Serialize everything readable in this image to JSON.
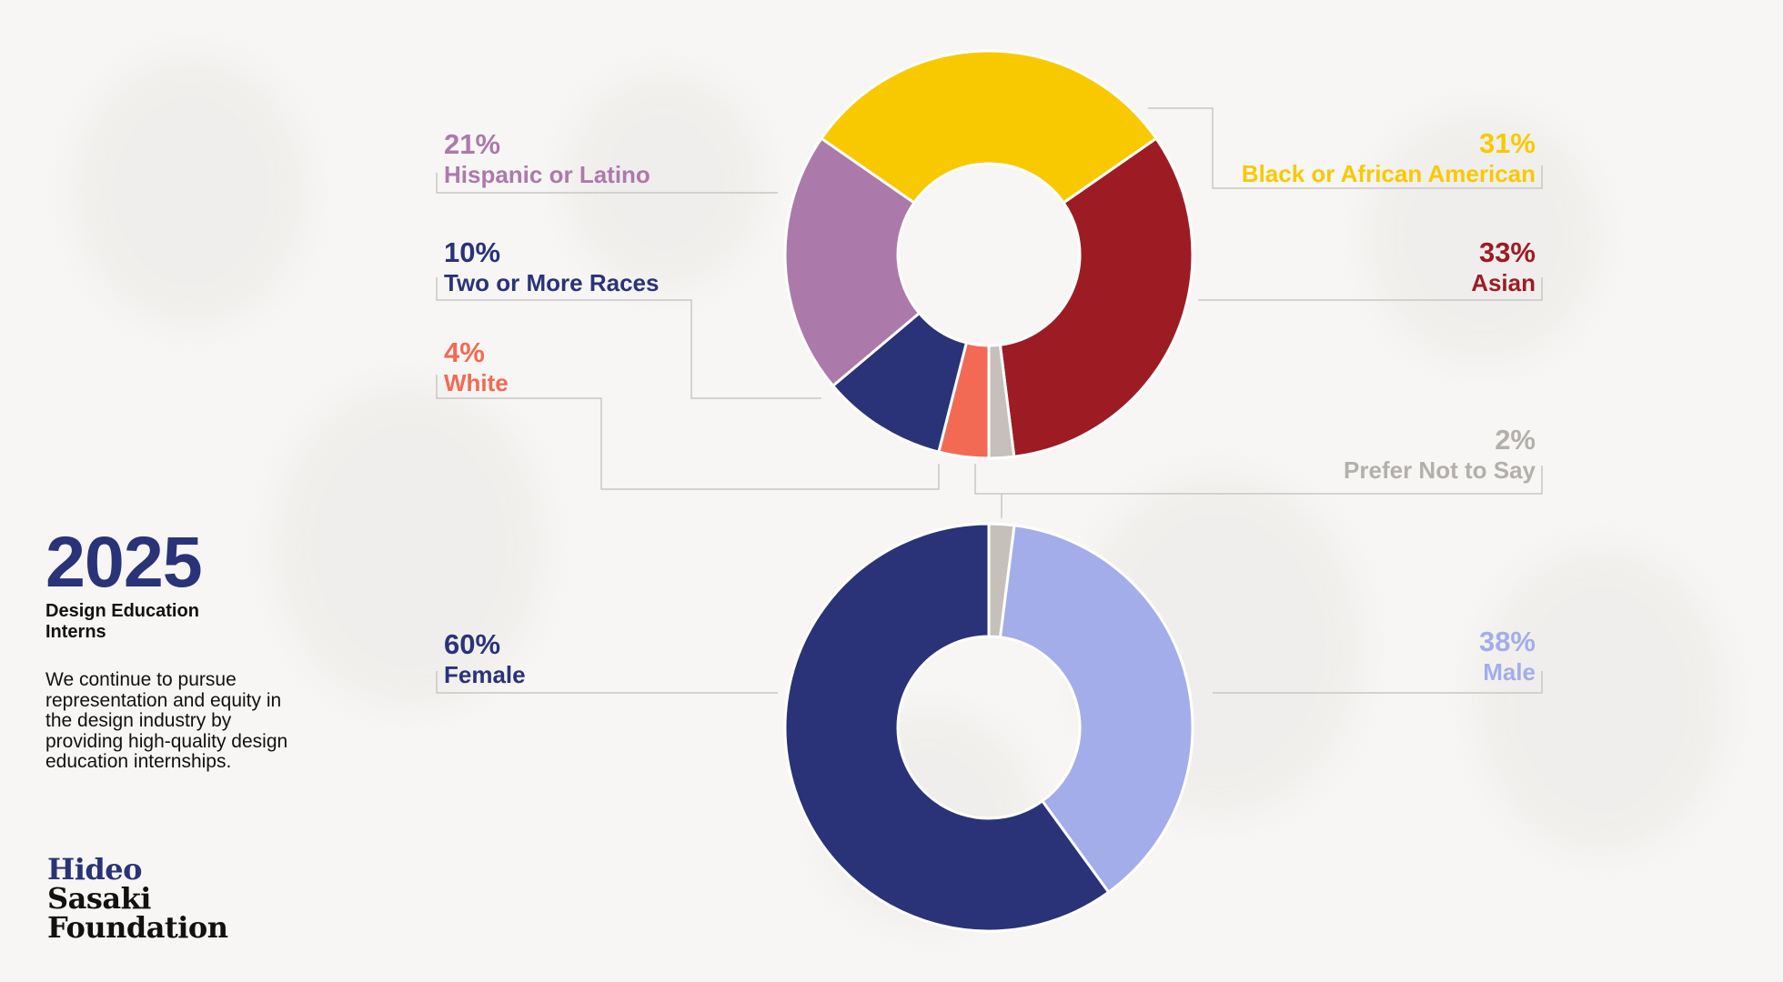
{
  "chart_data": [
    {
      "type": "pie",
      "title": "",
      "donut": true,
      "slices": [
        {
          "label": "Black or African American",
          "value": 31,
          "display": "31%",
          "color": "#f9c900"
        },
        {
          "label": "Asian",
          "value": 33,
          "display": "33%",
          "color": "#9d1c24"
        },
        {
          "label": "Prefer Not to Say",
          "value": 2,
          "display": "2%",
          "color": "#c5c0ba",
          "text_color": "#b3b0ac"
        },
        {
          "label": "White",
          "value": 4,
          "display": "4%",
          "color": "#f26a54"
        },
        {
          "label": "Two or More Races",
          "value": 10,
          "display": "10%",
          "color": "#2a3378"
        },
        {
          "label": "Hispanic or Latino",
          "value": 21,
          "display": "21%",
          "color": "#ac7aaa"
        }
      ]
    },
    {
      "type": "pie",
      "title": "",
      "donut": true,
      "slices": [
        {
          "label": "Prefer Not to Say",
          "value": 2,
          "display": "",
          "color": "#c5c0ba"
        },
        {
          "label": "Male",
          "value": 38,
          "display": "38%",
          "color": "#a3ade9"
        },
        {
          "label": "Female",
          "value": 60,
          "display": "60%",
          "color": "#2a3378"
        }
      ]
    }
  ],
  "side": {
    "year": "2025",
    "subtitle_line1": "Design Education",
    "subtitle_line2": "Interns",
    "description": "We continue to pursue representation and equity in the design industry by providing high-quality design education internships."
  },
  "logo": {
    "line1": "Hideo",
    "line2": "Sasaki",
    "line3": "Foundation"
  }
}
